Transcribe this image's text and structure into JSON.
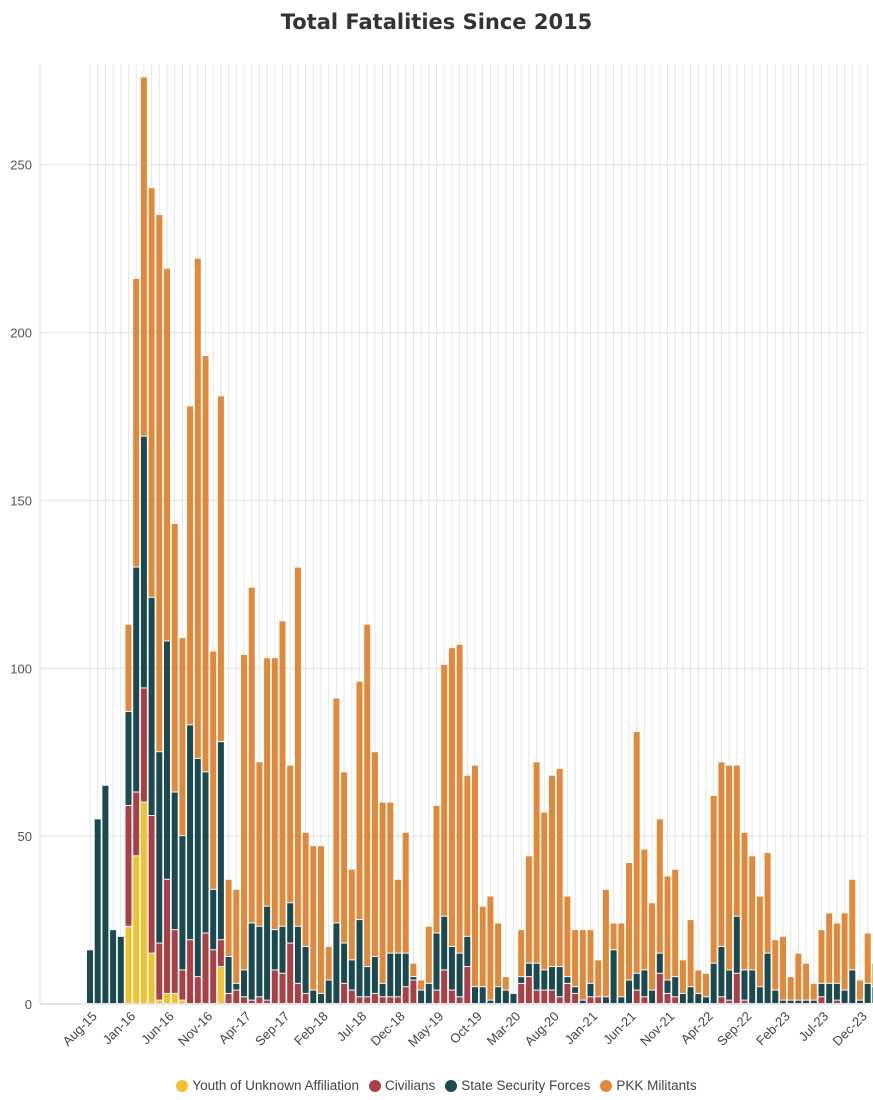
{
  "chart_data": {
    "type": "bar",
    "stacked": true,
    "title": "Total Fatalities Since 2015",
    "ylim": [
      0,
      280
    ],
    "yticks": [
      0,
      50,
      100,
      150,
      200,
      250
    ],
    "grid": true,
    "legend_position": "bottom-center",
    "x_tick_labels": [
      {
        "label": "Aug-15",
        "index": 1
      },
      {
        "label": "Jan-16",
        "index": 6
      },
      {
        "label": "Jun-16",
        "index": 11
      },
      {
        "label": "Nov-16",
        "index": 16
      },
      {
        "label": "Apr-17",
        "index": 21
      },
      {
        "label": "Sep-17",
        "index": 26
      },
      {
        "label": "Feb-18",
        "index": 31
      },
      {
        "label": "Jul-18",
        "index": 36
      },
      {
        "label": "Dec-18",
        "index": 41
      },
      {
        "label": "May-19",
        "index": 46
      },
      {
        "label": "Oct-19",
        "index": 51
      },
      {
        "label": "Mar-20",
        "index": 56
      },
      {
        "label": "Aug-20",
        "index": 61
      },
      {
        "label": "Jan-21",
        "index": 66
      },
      {
        "label": "Jun-21",
        "index": 71
      },
      {
        "label": "Nov-21",
        "index": 76
      },
      {
        "label": "Apr-22",
        "index": 81
      },
      {
        "label": "Sep-22",
        "index": 86
      },
      {
        "label": "Feb-23",
        "index": 91
      },
      {
        "label": "Jul-23",
        "index": 96
      },
      {
        "label": "Dec-23",
        "index": 101
      }
    ],
    "series": [
      {
        "name": "Youth of Unknown Affiliation",
        "color": "#f2c12e",
        "values": [
          0,
          0,
          0,
          0,
          0,
          23,
          44,
          60,
          15,
          1,
          3,
          3,
          1,
          0,
          0,
          0,
          0,
          11,
          0,
          0,
          0,
          0,
          0,
          0,
          0,
          0,
          0,
          0,
          0,
          0,
          0,
          0,
          0,
          0,
          0,
          0,
          0,
          0,
          0,
          0,
          0,
          0,
          0,
          0,
          0,
          0,
          0,
          0,
          0,
          0,
          0,
          0,
          0,
          0,
          0,
          0,
          0,
          0,
          0,
          0,
          0,
          0,
          0,
          0,
          0,
          0,
          0,
          0,
          0,
          0,
          0,
          0,
          0,
          0,
          0,
          0,
          0,
          0,
          0,
          0,
          0,
          0,
          0,
          0,
          0,
          0,
          0,
          0,
          0,
          0,
          0,
          0,
          0,
          0,
          0,
          0,
          0,
          0,
          0,
          0,
          0,
          0,
          0
        ]
      },
      {
        "name": "Civilians",
        "color": "#a84045",
        "values": [
          0,
          0,
          0,
          0,
          0,
          36,
          19,
          34,
          41,
          17,
          34,
          19,
          9,
          19,
          8,
          21,
          16,
          8,
          3,
          4,
          2,
          1,
          2,
          1,
          10,
          9,
          18,
          6,
          3,
          0,
          0,
          0,
          0,
          6,
          4,
          2,
          2,
          3,
          2,
          2,
          2,
          5,
          7,
          0,
          0,
          4,
          10,
          4,
          2,
          11,
          0,
          0,
          0,
          0,
          0,
          0,
          6,
          8,
          4,
          4,
          4,
          2,
          6,
          3,
          0,
          2,
          2,
          0,
          0,
          0,
          0,
          4,
          2,
          0,
          9,
          3,
          2,
          0,
          0,
          0,
          0,
          0,
          2,
          1,
          9,
          1,
          0,
          0,
          0,
          0,
          0,
          0,
          0,
          0,
          0,
          2,
          0,
          1,
          0,
          0,
          0,
          0,
          0
        ]
      },
      {
        "name": "State Security Forces",
        "color": "#1a4a4f",
        "values": [
          16,
          55,
          65,
          22,
          20,
          28,
          67,
          75,
          65,
          57,
          71,
          41,
          40,
          64,
          65,
          48,
          18,
          59,
          11,
          2,
          8,
          23,
          21,
          28,
          12,
          14,
          12,
          17,
          14,
          4,
          3,
          7,
          24,
          12,
          9,
          23,
          9,
          11,
          4,
          13,
          13,
          10,
          1,
          4,
          6,
          17,
          16,
          13,
          13,
          9,
          5,
          5,
          1,
          5,
          4,
          3,
          2,
          4,
          8,
          6,
          7,
          9,
          2,
          2,
          1,
          4,
          0,
          2,
          16,
          2,
          7,
          5,
          8,
          4,
          6,
          4,
          6,
          3,
          5,
          3,
          2,
          12,
          15,
          9,
          17,
          9,
          10,
          5,
          15,
          4,
          1,
          1,
          1,
          1,
          1,
          4,
          6,
          5,
          4,
          10,
          1,
          6,
          5
        ]
      },
      {
        "name": "PKK Militants",
        "color": "#e0893a",
        "values": [
          0,
          0,
          0,
          0,
          0,
          26,
          86,
          107,
          122,
          160,
          111,
          80,
          59,
          95,
          149,
          124,
          71,
          103,
          23,
          28,
          94,
          100,
          49,
          74,
          81,
          91,
          41,
          107,
          34,
          43,
          44,
          10,
          67,
          51,
          27,
          71,
          102,
          61,
          54,
          45,
          22,
          36,
          4,
          3,
          17,
          38,
          75,
          89,
          92,
          48,
          66,
          24,
          31,
          19,
          4,
          0,
          14,
          32,
          60,
          47,
          57,
          59,
          24,
          17,
          21,
          16,
          11,
          32,
          8,
          22,
          35,
          72,
          36,
          26,
          40,
          31,
          32,
          10,
          20,
          7,
          7,
          50,
          55,
          61,
          45,
          41,
          34,
          27,
          30,
          15,
          19,
          7,
          14,
          11,
          5,
          16,
          21,
          18,
          23,
          27,
          6,
          15,
          7
        ]
      }
    ]
  },
  "legend": {
    "items": [
      {
        "label": "Youth of Unknown Affiliation",
        "color": "#f2c12e"
      },
      {
        "label": "Civilians",
        "color": "#a84045"
      },
      {
        "label": "State Security Forces",
        "color": "#1a4a4f"
      },
      {
        "label": "PKK Militants",
        "color": "#e0893a"
      }
    ]
  }
}
